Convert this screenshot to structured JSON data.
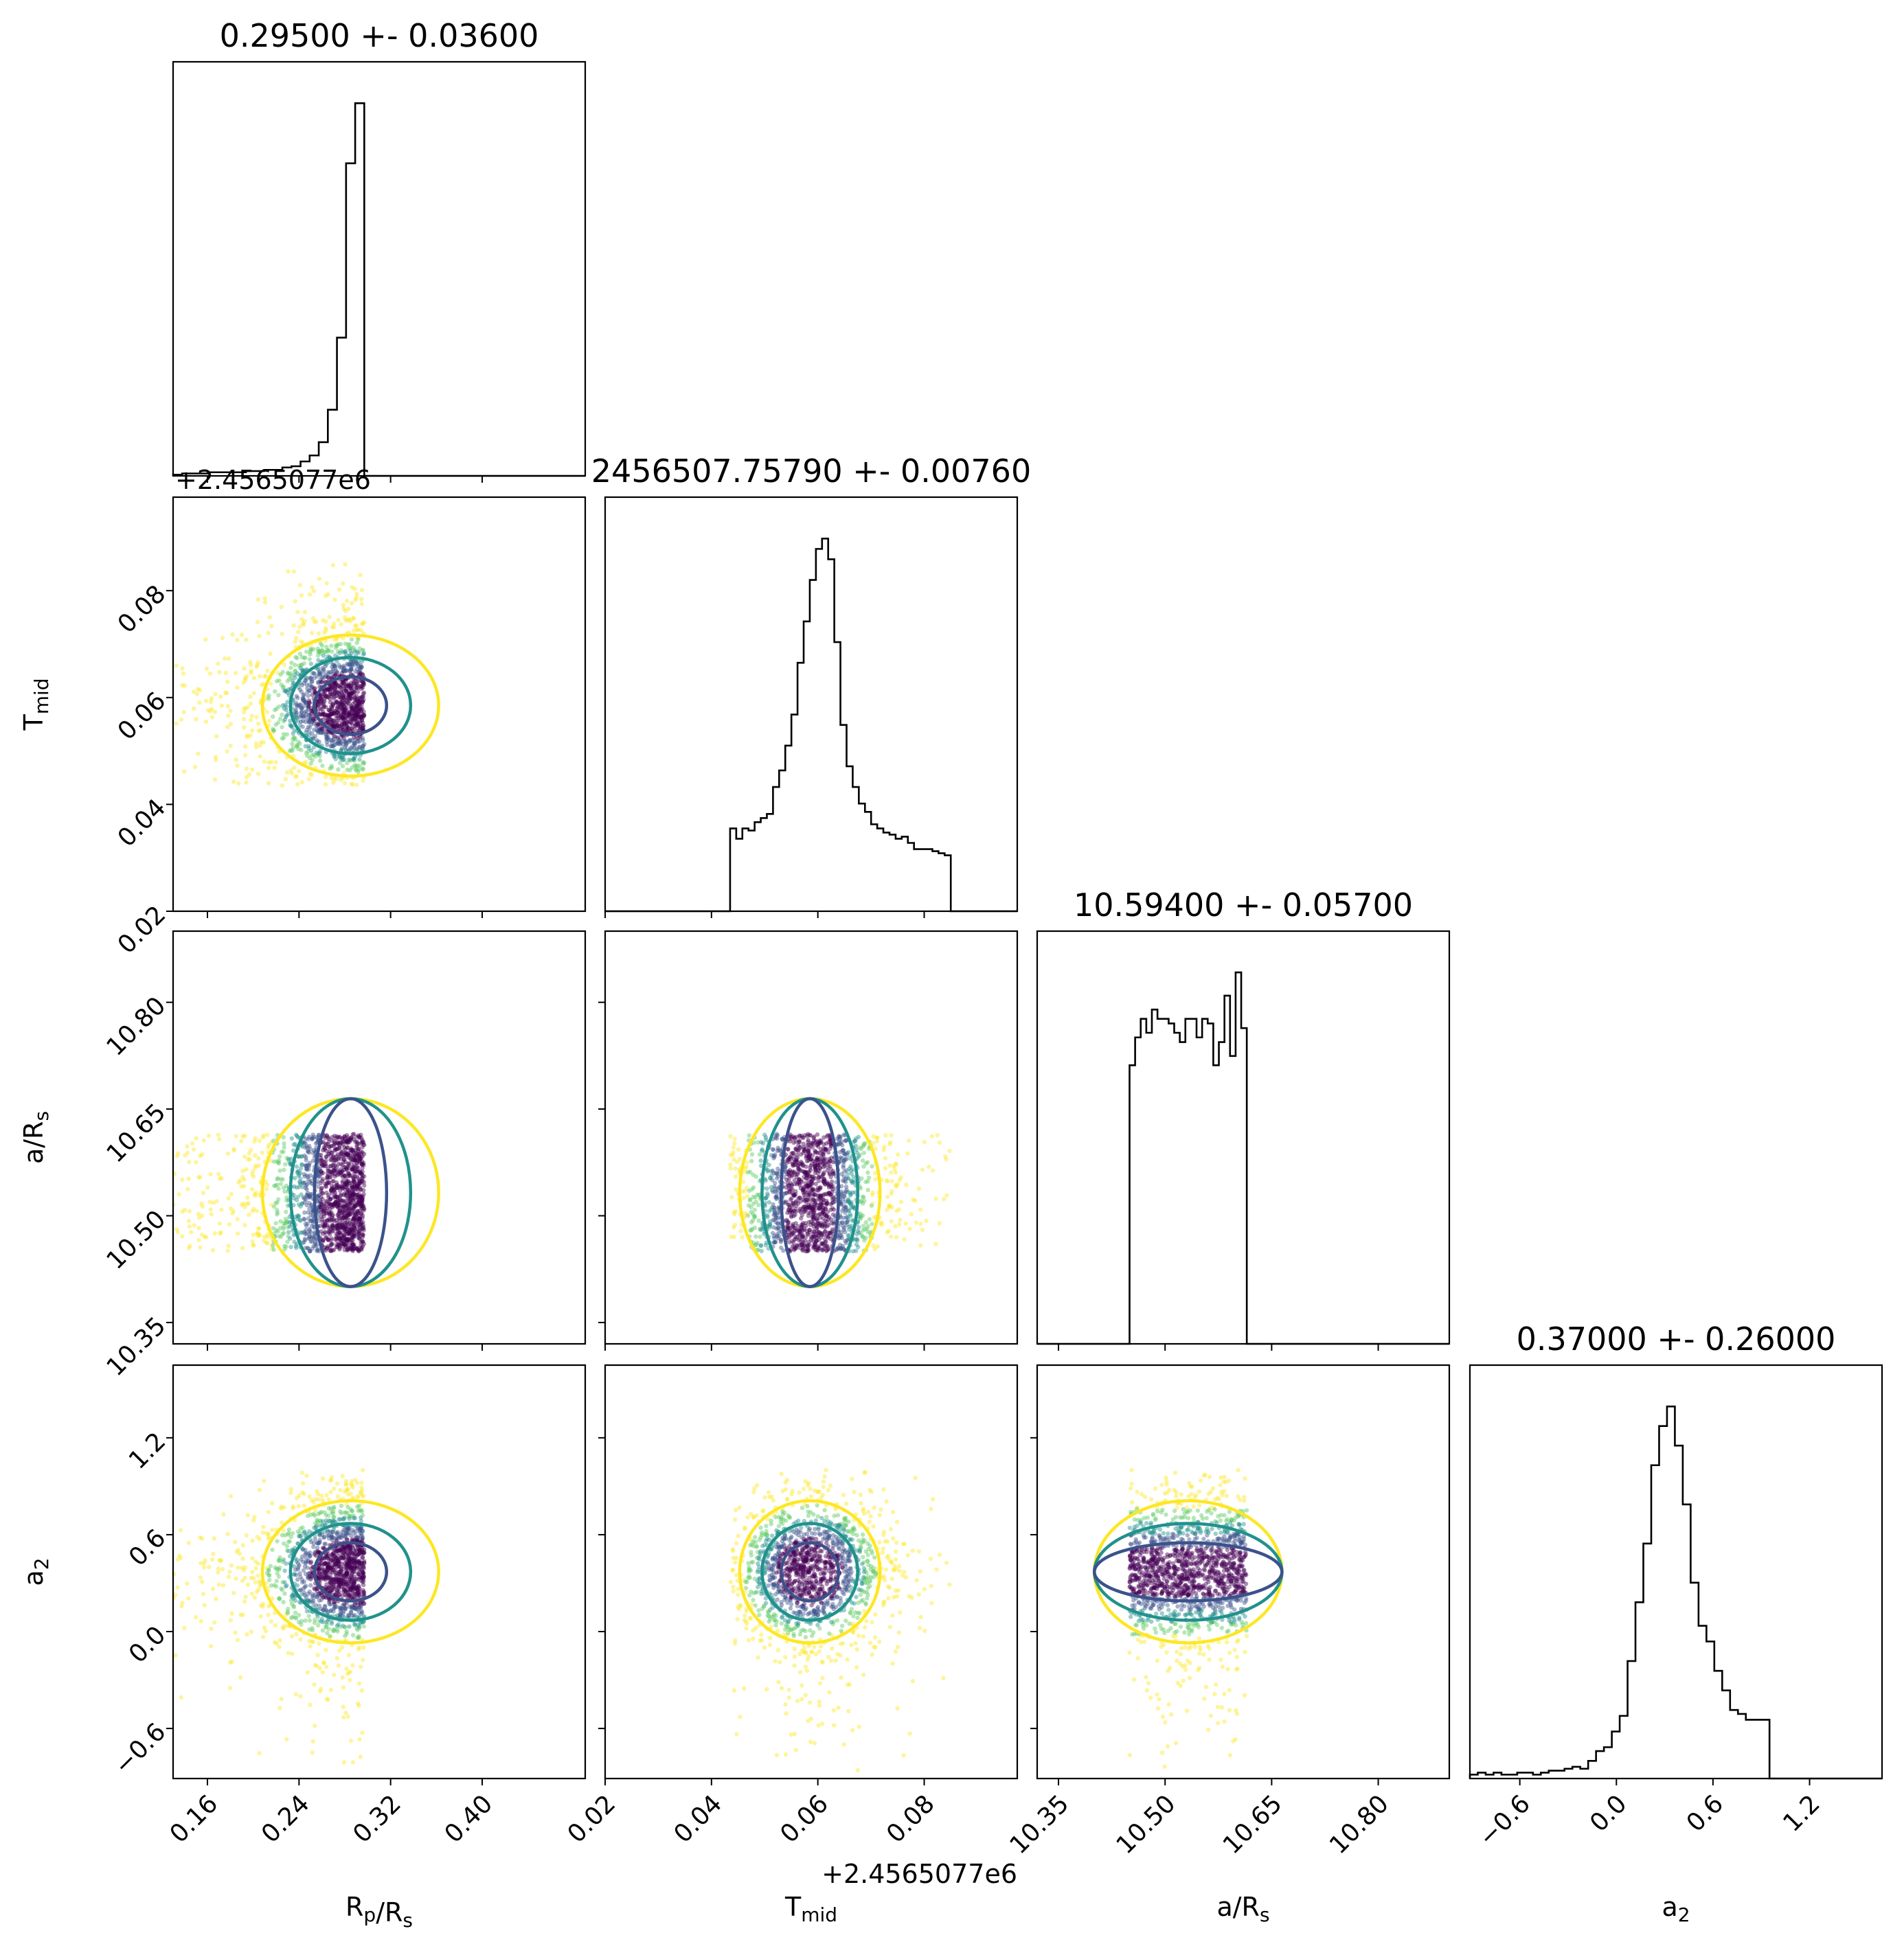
{
  "chart_data": {
    "type": "corner",
    "parameters": [
      {
        "key": "rp",
        "label": "R_p/R_s",
        "range": [
          0.13,
          0.49
        ],
        "ticks": [
          0.16,
          0.24,
          0.32,
          0.4
        ],
        "tick_labels": [
          "0.16",
          "0.24",
          "0.32",
          "0.40"
        ]
      },
      {
        "key": "tmid",
        "label": "T_mid",
        "range": [
          0.02,
          0.0975
        ],
        "ticks": [
          0.02,
          0.04,
          0.06,
          0.08
        ],
        "tick_labels": [
          "0.02",
          "0.04",
          "0.06",
          "0.08"
        ],
        "offset": "+2.4565077e6"
      },
      {
        "key": "ars",
        "label": "a/R_s",
        "range": [
          10.32,
          10.9
        ],
        "ticks": [
          10.35,
          10.5,
          10.65,
          10.8
        ],
        "tick_labels": [
          "10.35",
          "10.50",
          "10.65",
          "10.80"
        ]
      },
      {
        "key": "a2",
        "label": "a_2",
        "range": [
          -0.91,
          1.65
        ],
        "ticks": [
          -0.6,
          0.0,
          0.6,
          1.2
        ],
        "tick_labels": [
          "−0.6",
          "0.0",
          "0.6",
          "1.2"
        ]
      }
    ],
    "titles": [
      "0.29500 +- 0.03600",
      "2456507.75790 +- 0.00760",
      "10.59400 +- 0.05700",
      "0.37000 +- 0.26000"
    ],
    "histograms": [
      {
        "param": "rp",
        "peak": 0.29,
        "sampled_range": [
          0.13,
          0.297
        ],
        "values": [
          1,
          2,
          2,
          2,
          3,
          3,
          3,
          3,
          4,
          4,
          5,
          5,
          7,
          8,
          12,
          17,
          28,
          55,
          115,
          260,
          310
        ]
      },
      {
        "param": "tmid",
        "peak": 0.0585,
        "sampled_range": [
          0.0435,
          0.085
        ],
        "values": [
          40,
          35,
          40,
          39,
          43,
          45,
          47,
          60,
          68,
          80,
          95,
          120,
          140,
          160,
          175,
          180,
          170,
          130,
          90,
          70,
          60,
          52,
          48,
          42,
          40,
          38,
          37,
          35,
          36,
          33,
          30,
          30,
          30,
          29,
          28,
          27
        ]
      },
      {
        "param": "ars",
        "peak": 10.61,
        "sampled_range": [
          10.45,
          10.615
        ],
        "values": [
          60,
          66,
          70,
          67,
          72,
          70,
          70,
          69,
          67,
          65,
          70,
          70,
          66,
          70,
          69,
          60,
          65,
          75,
          62,
          80,
          68
        ]
      },
      {
        "param": "a2",
        "peak": 0.37,
        "sampled_range": [
          -0.91,
          1.0
        ],
        "values": [
          2,
          3,
          2,
          3,
          2,
          2,
          3,
          3,
          2,
          3,
          4,
          4,
          5,
          6,
          5,
          9,
          14,
          16,
          24,
          32,
          60,
          90,
          120,
          160,
          180,
          190,
          170,
          140,
          100,
          78,
          70,
          55,
          45,
          35,
          33,
          30,
          30,
          30,
          0
        ]
      }
    ],
    "sample_colors": [
      "#fde725",
      "#5ec962",
      "#21918c",
      "#3b528b",
      "#440154"
    ],
    "contour_colors": [
      "#fde725",
      "#21918c",
      "#3b528b"
    ],
    "scatter_panels": [
      {
        "x": "rp",
        "y": "tmid"
      },
      {
        "x": "rp",
        "y": "ars"
      },
      {
        "x": "tmid",
        "y": "ars"
      },
      {
        "x": "rp",
        "y": "a2"
      },
      {
        "x": "tmid",
        "y": "a2"
      },
      {
        "x": "ars",
        "y": "a2"
      }
    ]
  }
}
